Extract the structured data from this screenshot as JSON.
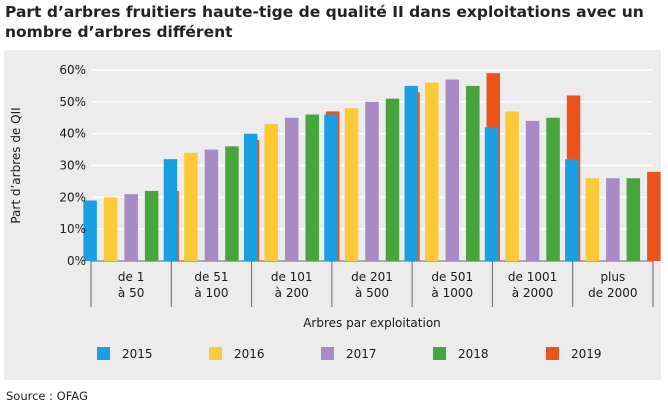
{
  "title": "Part d’arbres fruitiers haute-tige de qualité II dans exploitations avec un nombre d’arbres différent",
  "source": "Source : OFAG",
  "colors": {
    "2015": "#1a9fe3",
    "2016": "#fcc937",
    "2017": "#a88ac4",
    "2018": "#46a63c",
    "2019": "#ea531c",
    "frame": "#ececec",
    "grid": "#ffffff"
  },
  "chart_data": {
    "type": "bar",
    "ylabel": "Part d’arbres de QII",
    "xlabel": "Arbres par exploitation",
    "ylim": [
      0,
      60
    ],
    "yticks": [
      "0%",
      "10%",
      "20%",
      "30%",
      "40%",
      "50%",
      "60%"
    ],
    "ytick_values": [
      0,
      10,
      20,
      30,
      40,
      50,
      60
    ],
    "grid": true,
    "legend_position": "bottom",
    "categories": [
      [
        "de 1",
        "à 50"
      ],
      [
        "de 51",
        "à 100"
      ],
      [
        "de 101",
        "à 200"
      ],
      [
        "de 201",
        "à 500"
      ],
      [
        "de 501",
        "à 1000"
      ],
      [
        "de 1001",
        "à 2000"
      ],
      [
        "plus",
        "de 2000"
      ]
    ],
    "series": [
      {
        "name": "2015",
        "values": [
          19,
          32,
          40,
          46,
          55,
          42,
          32
        ]
      },
      {
        "name": "2016",
        "values": [
          20,
          34,
          43,
          48,
          56,
          47,
          26
        ]
      },
      {
        "name": "2017",
        "values": [
          21,
          35,
          45,
          50,
          57,
          44,
          26
        ]
      },
      {
        "name": "2018",
        "values": [
          22,
          36,
          46,
          51,
          55,
          45,
          26
        ]
      },
      {
        "name": "2019",
        "values": [
          22,
          38,
          47,
          53,
          59,
          52,
          28
        ]
      }
    ]
  }
}
